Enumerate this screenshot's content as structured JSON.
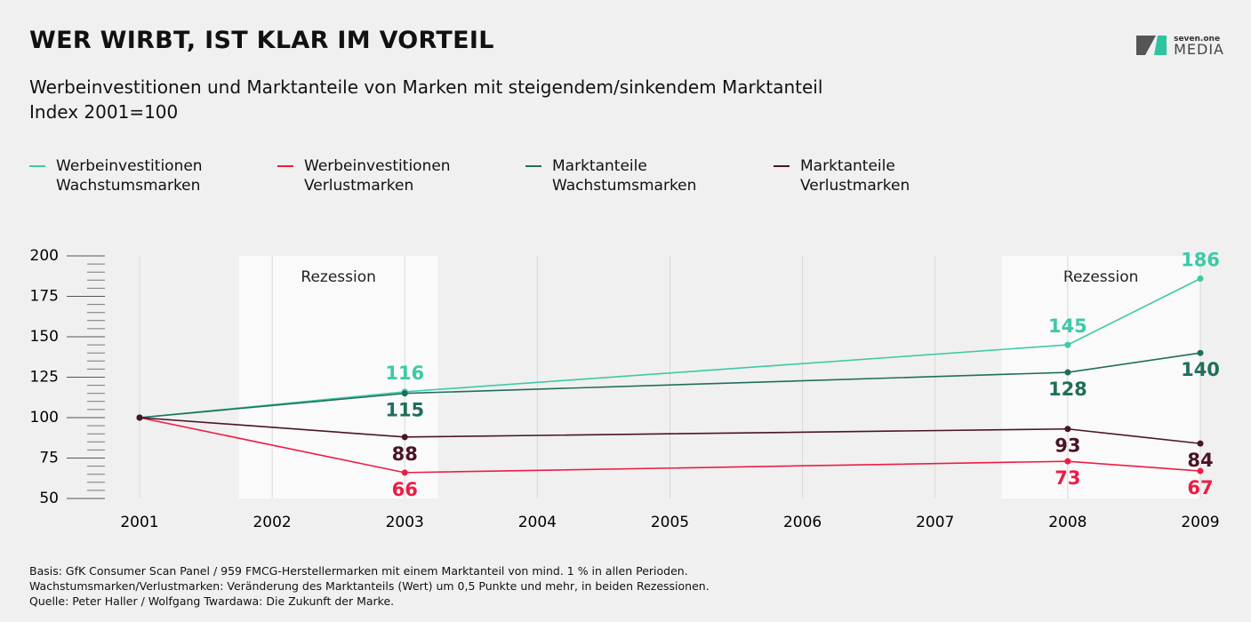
{
  "header": {
    "title": "WER WIRBT, IST KLAR IM VORTEIL",
    "subtitle": "Werbeinvestitionen und Marktanteile von Marken mit steigendem/sinkendem Marktanteil",
    "subtitle2": "Index 2001=100",
    "logo_small": "seven.one",
    "logo_large": "MEDIA"
  },
  "chart_data": {
    "type": "line",
    "x": [
      2001,
      2003,
      2008,
      2009
    ],
    "xlim": [
      2001,
      2009
    ],
    "xticks": [
      2001,
      2002,
      2003,
      2004,
      2005,
      2006,
      2007,
      2008,
      2009
    ],
    "ylim": [
      50,
      200
    ],
    "yticks": [
      50,
      75,
      100,
      125,
      150,
      175,
      200
    ],
    "yminorticks": [
      55,
      60,
      65,
      70,
      80,
      85,
      90,
      95,
      105,
      110,
      115,
      120,
      130,
      135,
      140,
      145,
      155,
      160,
      165,
      170,
      180,
      185,
      190,
      195
    ],
    "grid": true,
    "shaded_regions": [
      {
        "label": "Rezession",
        "xlim": [
          2001.75,
          2003.25
        ]
      },
      {
        "label": "Rezession",
        "xlim": [
          2007.5,
          2009
        ]
      }
    ],
    "series": [
      {
        "name": "Werbeinvestitionen Wachstumsmarken",
        "color": "#3ccaa6",
        "label_position": "above",
        "values": [
          100,
          116,
          145,
          186
        ]
      },
      {
        "name": "Werbeinvestitionen Verlustmarken",
        "color": "#ee1c44",
        "label_position": "below",
        "values": [
          100,
          66,
          73,
          67
        ]
      },
      {
        "name": "Marktanteile Wachstumsmarken",
        "color": "#1f6e5c",
        "label_position": "below",
        "values": [
          100,
          115,
          128,
          140
        ]
      },
      {
        "name": "Marktanteile Verlustmarken",
        "color": "#4b1424",
        "label_position": "below",
        "values": [
          100,
          88,
          93,
          84
        ]
      }
    ]
  },
  "footer": {
    "notes": [
      "Basis: GfK Consumer Scan Panel / 959 FMCG-Herstellermarken mit einem Marktanteil von mind. 1 % in allen Perioden.",
      "Wachstumsmarken/Verlustmarken: Veränderung des Marktanteils (Wert) um 0,5 Punkte und mehr, in beiden Rezessionen.",
      "Quelle: Peter Haller / Wolfgang Twardawa: Die Zukunft der Marke."
    ]
  }
}
